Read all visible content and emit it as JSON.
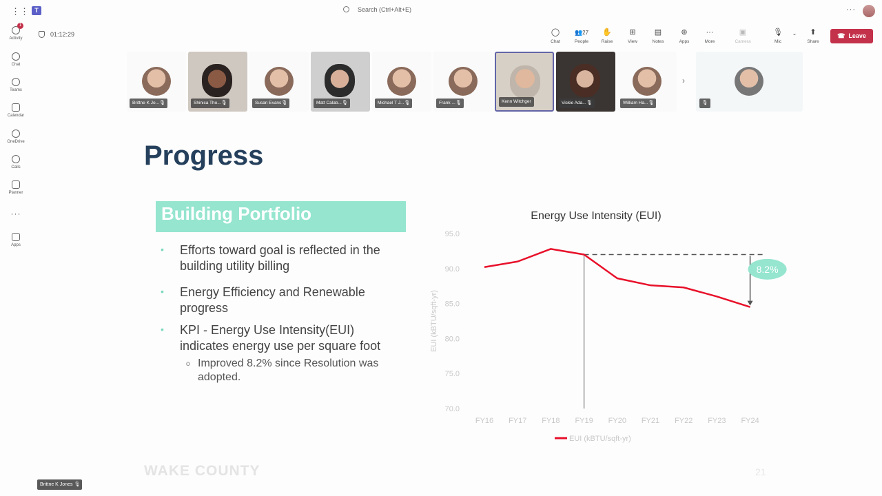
{
  "app": {
    "search_placeholder": "Search (Ctrl+Alt+E)"
  },
  "rail": {
    "items": [
      {
        "label": "Activity",
        "icon": "bell-icon",
        "badge": "1"
      },
      {
        "label": "Chat",
        "icon": "chat-icon"
      },
      {
        "label": "Teams",
        "icon": "teams-icon"
      },
      {
        "label": "Calendar",
        "icon": "calendar-icon"
      },
      {
        "label": "OneDrive",
        "icon": "cloud-icon"
      },
      {
        "label": "Calls",
        "icon": "phone-icon"
      },
      {
        "label": "Planner",
        "icon": "planner-icon"
      },
      {
        "label": "Apps",
        "icon": "apps-icon"
      }
    ]
  },
  "meeting": {
    "timer": "01:12:29",
    "people_count": "27",
    "tools": [
      {
        "label": "Chat",
        "icon": "chat-icon",
        "glyph": "◯"
      },
      {
        "label": "People",
        "icon": "people-icon",
        "glyph": "👥"
      },
      {
        "label": "Raise",
        "icon": "hand-icon",
        "glyph": "✋"
      },
      {
        "label": "View",
        "icon": "view-icon",
        "glyph": "⊞"
      },
      {
        "label": "Notes",
        "icon": "notes-icon",
        "glyph": "▤"
      },
      {
        "label": "Apps",
        "icon": "apps-icon",
        "glyph": "⊕"
      },
      {
        "label": "More",
        "icon": "more-icon",
        "glyph": "···"
      },
      {
        "label": "Camera",
        "icon": "camera-icon",
        "glyph": "▣"
      },
      {
        "label": "Mic",
        "icon": "mic-icon",
        "glyph": "🎙"
      },
      {
        "label": "Share",
        "icon": "share-icon",
        "glyph": "⬆"
      }
    ],
    "leave_label": "Leave",
    "participants": [
      {
        "name": "Brittne K Jo...",
        "video": false
      },
      {
        "name": "Shinica Tho...",
        "video": true
      },
      {
        "name": "Susan Evans",
        "video": false
      },
      {
        "name": "Matt Calab...",
        "video": true
      },
      {
        "name": "Michael T J...",
        "video": false
      },
      {
        "name": "Frank ...",
        "video": false
      },
      {
        "name": "Kenn Witchger",
        "video": true,
        "active": true
      },
      {
        "name": "Vickie Ada...",
        "video": true
      },
      {
        "name": "William Ha...",
        "video": false
      }
    ],
    "presenter_name": "Brittne K Jones"
  },
  "slide": {
    "title": "Progress",
    "section": "Building Portfolio",
    "bullets": [
      "Efforts toward goal is reflected in the building utility billing",
      "Energy Efficiency and Renewable progress",
      "KPI - Energy Use Intensity(EUI) indicates energy use per square foot"
    ],
    "sub_bullet": "Improved 8.2% since Resolution was adopted.",
    "footer": "WAKE COUNTY",
    "page_number": "21"
  },
  "chart_data": {
    "type": "line",
    "title": "Energy Use Intensity (EUI)",
    "ylabel": "EUI (kBTU/sqft-yr)",
    "categories": [
      "FY16",
      "FY17",
      "FY18",
      "FY19",
      "FY20",
      "FY21",
      "FY22",
      "FY23",
      "FY24"
    ],
    "yticks": [
      "95.0",
      "90.0",
      "85.0",
      "80.0",
      "75.0",
      "70.0"
    ],
    "ylim": [
      70,
      95
    ],
    "series": [
      {
        "name": "EUI (kBTU/sqft-yr)",
        "color": "#e8102a",
        "values": [
          90.2,
          91.0,
          92.8,
          92.0,
          88.6,
          87.6,
          87.3,
          86.0,
          84.5
        ]
      }
    ],
    "baseline_value": 92.0,
    "annotation": "8.2%",
    "legend": "bottom",
    "grid": false
  }
}
